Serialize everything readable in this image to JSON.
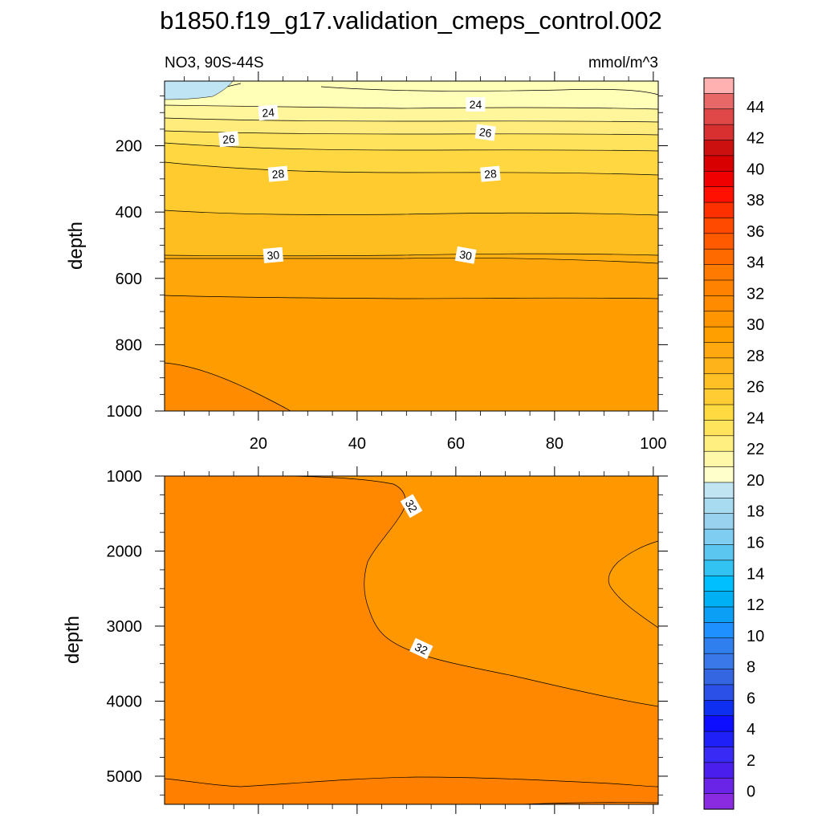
{
  "chart_data": {
    "type": "contour",
    "title": "b1850.f19_g17.validation_cmeps_control.002",
    "left_string": "NO3, 90S-44S",
    "right_string": "mmol/m^3",
    "panels": [
      {
        "ylabel": "depth",
        "xlim": [
          1,
          101
        ],
        "ylim": [
          1000,
          5
        ],
        "x_ticks": [
          20,
          40,
          60,
          80,
          100
        ],
        "y_ticks": [
          200,
          400,
          600,
          800,
          1000
        ],
        "contour_labels": [
          {
            "text": "24",
            "x": 22,
            "y": 100,
            "angle": -5
          },
          {
            "text": "24",
            "x": 64,
            "y": 75,
            "angle": 0
          },
          {
            "text": "26",
            "x": 14,
            "y": 180,
            "angle": -5
          },
          {
            "text": "26",
            "x": 66,
            "y": 160,
            "angle": 8
          },
          {
            "text": "28",
            "x": 24,
            "y": 285,
            "angle": -5
          },
          {
            "text": "28",
            "x": 67,
            "y": 285,
            "angle": -5
          },
          {
            "text": "30",
            "x": 23,
            "y": 530,
            "angle": -5
          },
          {
            "text": "30",
            "x": 62,
            "y": 530,
            "angle": 10
          }
        ]
      },
      {
        "ylabel": "depth",
        "xlim": [
          1,
          101
        ],
        "ylim": [
          5375,
          1000
        ],
        "x_ticks": [
          20,
          40,
          60,
          80,
          100
        ],
        "y_ticks": [
          1000,
          2000,
          3000,
          4000,
          5000
        ],
        "contour_labels": [
          {
            "text": "32",
            "x": 51,
            "y": 1400,
            "angle": 60
          },
          {
            "text": "32",
            "x": 53,
            "y": 3300,
            "angle": 25
          }
        ]
      }
    ],
    "colorbar": {
      "levels": [
        0,
        2,
        4,
        6,
        8,
        10,
        12,
        14,
        16,
        18,
        20,
        22,
        24,
        26,
        28,
        30,
        32,
        34,
        36,
        38,
        40,
        42,
        44
      ],
      "colors": [
        "#8a2be2",
        "#6a24e8",
        "#4a1fee",
        "#3a2af5",
        "#1f1ff8",
        "#0d0dff",
        "#0f2ff0",
        "#2a50e8",
        "#3366e0",
        "#3a77e8",
        "#2f80ee",
        "#1e90ff",
        "#0ba0f5",
        "#00b0f5",
        "#00bfff",
        "#33c3f2",
        "#5bc6f0",
        "#7fcdf0",
        "#98d2ee",
        "#a8dbf0",
        "#c0e4f2",
        "#ffffcc",
        "#fff8a8",
        "#ffee80",
        "#ffe45c",
        "#ffda40",
        "#ffcc33",
        "#ffc026",
        "#ffb31a",
        "#ffa80f",
        "#ffa000",
        "#ff9500",
        "#ff8c00",
        "#ff8300",
        "#ff7a00",
        "#ff6a00",
        "#ff5a00",
        "#ff4a00",
        "#ff3000",
        "#ff1000",
        "#f00000",
        "#d80000",
        "#cc1010",
        "#d83030",
        "#e04848",
        "#e86868",
        "#ffb0b0"
      ]
    }
  }
}
